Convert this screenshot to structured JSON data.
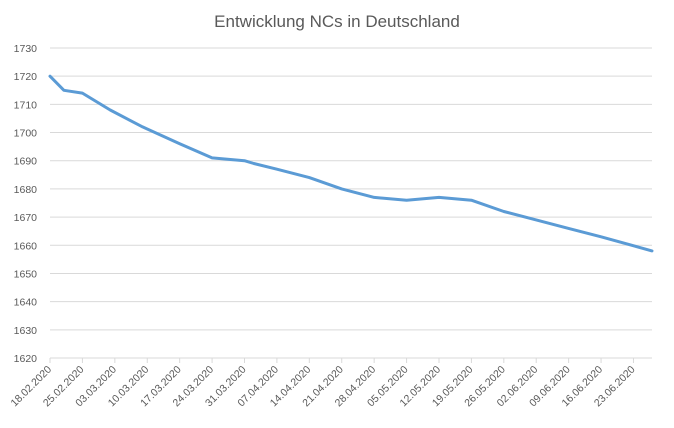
{
  "chart_data": {
    "type": "line",
    "title": "Entwicklung NCs in Deutschland",
    "xlabel": "",
    "ylabel": "",
    "ylim": [
      1620,
      1730
    ],
    "yticks": [
      1620,
      1630,
      1640,
      1650,
      1660,
      1670,
      1680,
      1690,
      1700,
      1710,
      1720,
      1730
    ],
    "grid": true,
    "legend": "none",
    "x_tick_labels": [
      "18.02.2020",
      "25.02.2020",
      "03.03.2020",
      "10.03.2020",
      "17.03.2020",
      "24.03.2020",
      "31.03.2020",
      "07.04.2020",
      "14.04.2020",
      "21.04.2020",
      "28.04.2020",
      "05.05.2020",
      "12.05.2020",
      "19.05.2020",
      "26.05.2020",
      "02.06.2020",
      "09.06.2020",
      "16.06.2020",
      "23.06.2020"
    ],
    "x_range": [
      "18.02.2020",
      "27.06.2020"
    ],
    "series": [
      {
        "color": "#5b9bd5",
        "x": [
          "18.02.2020",
          "21.02.2020",
          "25.02.2020",
          "02.03.2020",
          "09.03.2020",
          "17.03.2020",
          "24.03.2020",
          "31.03.2020",
          "02.04.2020",
          "07.04.2020",
          "14.04.2020",
          "21.04.2020",
          "28.04.2020",
          "05.05.2020",
          "12.05.2020",
          "19.05.2020",
          "26.05.2020",
          "02.06.2020",
          "09.06.2020",
          "16.06.2020",
          "27.06.2020"
        ],
        "values": [
          1720,
          1715,
          1714,
          1708,
          1702,
          1696,
          1691,
          1690,
          1689,
          1687,
          1684,
          1680,
          1677,
          1676,
          1677,
          1676,
          1672,
          1669,
          1666,
          1663,
          1658
        ]
      }
    ]
  }
}
